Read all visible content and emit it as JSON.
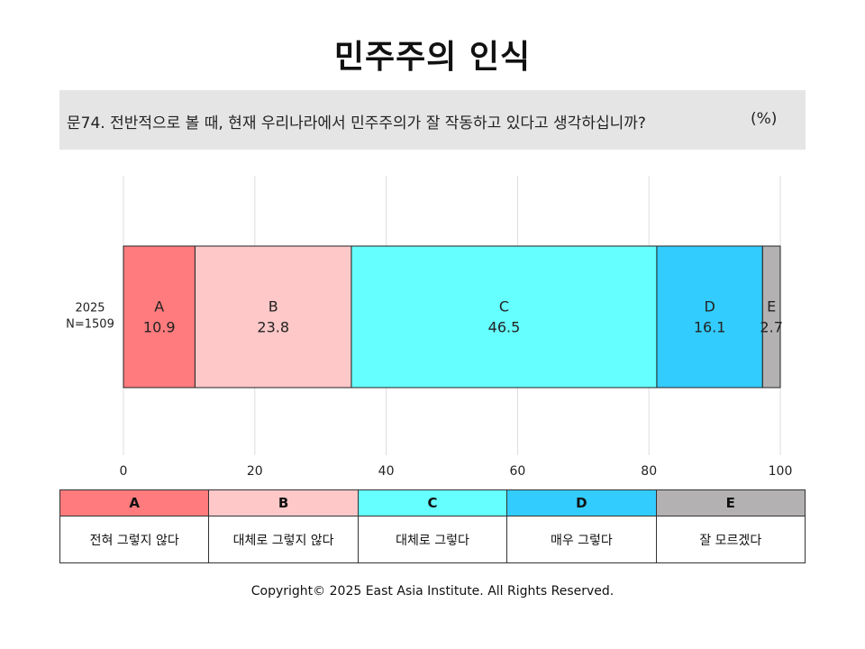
{
  "title": "민주주의 인식",
  "question": "문74. 전반적으로 볼 때, 현재 우리나라에서 민주주의가 잘 작동하고 있다고 생각하십니까?",
  "unit": "(%)",
  "footer": "Copyright© 2025 East Asia Institute. All Rights Reserved.",
  "chart_data": {
    "type": "bar",
    "orientation": "horizontal",
    "stacked": true,
    "categories": [
      "2025\nN=1509"
    ],
    "category_lines": [
      "2025",
      "N=1509"
    ],
    "series": [
      {
        "name": "A",
        "values": [
          10.9
        ],
        "color": "#ff7b7d",
        "label": "10.9"
      },
      {
        "name": "B",
        "values": [
          23.8
        ],
        "color": "#ffc8c8",
        "label": "23.8"
      },
      {
        "name": "C",
        "values": [
          46.5
        ],
        "color": "#66ffff",
        "label": "46.5"
      },
      {
        "name": "D",
        "values": [
          16.1
        ],
        "color": "#33ccff",
        "label": "16.1"
      },
      {
        "name": "E",
        "values": [
          2.7
        ],
        "color": "#b3b1b1",
        "label": "2.7"
      }
    ],
    "xlim": [
      0,
      100
    ],
    "xticks": [
      0,
      20,
      40,
      60,
      80,
      100
    ],
    "xtick_labels": [
      "0",
      "20",
      "40",
      "60",
      "80",
      "100"
    ],
    "grid": "vertical"
  },
  "legend": [
    {
      "key": "A",
      "label": "전혀 그렇지 않다",
      "color": "#ff7b7d"
    },
    {
      "key": "B",
      "label": "대체로 그렇지 않다",
      "color": "#ffc8c8"
    },
    {
      "key": "C",
      "label": "대체로 그렇다",
      "color": "#66ffff"
    },
    {
      "key": "D",
      "label": "매우 그렇다",
      "color": "#33ccff"
    },
    {
      "key": "E",
      "label": "잘 모르겠다",
      "color": "#b3b1b1"
    }
  ]
}
